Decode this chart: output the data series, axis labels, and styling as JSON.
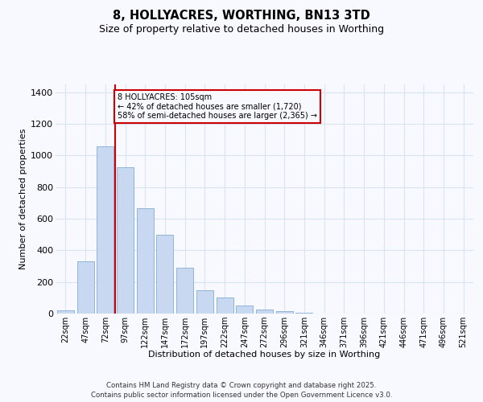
{
  "title1": "8, HOLLYACRES, WORTHING, BN13 3TD",
  "title2": "Size of property relative to detached houses in Worthing",
  "xlabel": "Distribution of detached houses by size in Worthing",
  "ylabel": "Number of detached properties",
  "bar_color": "#c8d8f0",
  "bar_edge_color": "#90b4d8",
  "categories": [
    "22sqm",
    "47sqm",
    "72sqm",
    "97sqm",
    "122sqm",
    "147sqm",
    "172sqm",
    "197sqm",
    "222sqm",
    "247sqm",
    "272sqm",
    "296sqm",
    "321sqm",
    "346sqm",
    "371sqm",
    "396sqm",
    "421sqm",
    "446sqm",
    "471sqm",
    "496sqm",
    "521sqm"
  ],
  "values": [
    20,
    330,
    1060,
    925,
    665,
    500,
    290,
    150,
    100,
    50,
    25,
    15,
    5,
    0,
    0,
    0,
    0,
    0,
    0,
    0,
    0
  ],
  "vline_color": "#cc0000",
  "vline_pos": 3.0,
  "annotation_title": "8 HOLLYACRES: 105sqm",
  "annotation_line1": "← 42% of detached houses are smaller (1,720)",
  "annotation_line2": "58% of semi-detached houses are larger (2,365) →",
  "ann_box_edgecolor": "#cc0000",
  "ylim_max": 1450,
  "yticks": [
    0,
    200,
    400,
    600,
    800,
    1000,
    1200,
    1400
  ],
  "footer1": "Contains HM Land Registry data © Crown copyright and database right 2025.",
  "footer2": "Contains public sector information licensed under the Open Government Licence v3.0.",
  "bg_color": "#f8f8ff",
  "grid_color": "#d8e4f0"
}
